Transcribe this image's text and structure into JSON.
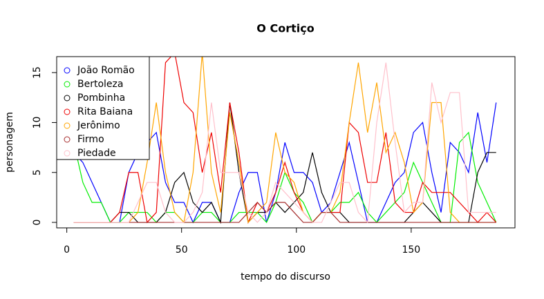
{
  "chart_data": {
    "type": "line",
    "title": "O Cortiço",
    "xlabel": "tempo do discurso",
    "ylabel": "personagem",
    "x": [
      3,
      7,
      11,
      15,
      19,
      23,
      27,
      31,
      35,
      39,
      43,
      47,
      51,
      55,
      59,
      63,
      67,
      71,
      75,
      79,
      83,
      87,
      91,
      95,
      99,
      103,
      107,
      111,
      115,
      119,
      123,
      127,
      131,
      135,
      139,
      143,
      147,
      151,
      155,
      159,
      163,
      167,
      171,
      175,
      179,
      183,
      187
    ],
    "series": [
      {
        "name": "João Romão",
        "color": "#0000ff",
        "values": [
          7,
          6,
          4,
          2,
          0,
          0,
          5,
          7,
          8,
          9,
          4,
          2,
          2,
          0,
          2,
          2,
          0,
          0,
          3,
          5,
          5,
          0,
          3,
          8,
          5,
          5,
          4,
          1,
          2,
          5,
          8,
          4,
          0,
          0,
          2,
          4,
          5,
          9,
          10,
          5,
          1,
          8,
          7,
          5,
          11,
          6,
          12
        ]
      },
      {
        "name": "Bertoleza",
        "color": "#00ee00",
        "values": [
          8,
          4,
          2,
          2,
          0,
          0,
          1,
          1,
          1,
          0,
          1,
          1,
          0,
          0,
          1,
          1,
          0,
          0,
          1,
          1,
          1,
          0,
          2,
          5,
          3,
          2,
          0,
          1,
          1,
          2,
          2,
          3,
          1,
          0,
          1,
          2,
          3,
          6,
          4,
          2,
          0,
          0,
          8,
          9,
          4,
          2,
          0
        ]
      },
      {
        "name": "Pombinha",
        "color": "#000000",
        "values": [
          0,
          0,
          0,
          0,
          0,
          1,
          1,
          0,
          0,
          0,
          1,
          4,
          5,
          2,
          1,
          2,
          0,
          12,
          5,
          0,
          1,
          1,
          2,
          1,
          2,
          3,
          7,
          3,
          1,
          1,
          0,
          0,
          0,
          0,
          0,
          0,
          0,
          1,
          2,
          1,
          0,
          0,
          0,
          0,
          5,
          7,
          7
        ]
      },
      {
        "name": "Rita Baiana",
        "color": "#ee0000",
        "values": [
          0,
          0,
          0,
          0,
          0,
          1,
          5,
          5,
          0,
          1,
          16,
          17,
          12,
          11,
          5,
          9,
          3,
          12,
          7,
          0,
          2,
          1,
          3,
          6,
          3,
          1,
          0,
          1,
          1,
          1,
          10,
          9,
          4,
          4,
          9,
          2,
          1,
          1,
          4,
          3,
          3,
          3,
          2,
          1,
          0,
          1,
          0
        ]
      },
      {
        "name": "Jerônimo",
        "color": "#ffa500",
        "values": [
          0,
          0,
          0,
          0,
          0,
          0,
          0,
          1,
          6,
          12,
          5,
          1,
          0,
          5,
          17,
          5,
          1,
          11,
          6,
          0,
          1,
          2,
          9,
          5,
          4,
          1,
          0,
          1,
          1,
          3,
          10,
          16,
          9,
          14,
          7,
          9,
          6,
          1,
          2,
          12,
          12,
          1,
          0,
          0,
          0,
          0,
          0
        ]
      },
      {
        "name": "Firmo",
        "color": "#a52a2a",
        "values": [
          0,
          0,
          0,
          0,
          0,
          0,
          0,
          0,
          0,
          0,
          0,
          0,
          0,
          0,
          0,
          0,
          0,
          0,
          0,
          1,
          2,
          1,
          2,
          2,
          1,
          0,
          0,
          1,
          1,
          0,
          0,
          0,
          0,
          0,
          0,
          0,
          0,
          0,
          0,
          0,
          0,
          0,
          0,
          0,
          0,
          0,
          0
        ]
      },
      {
        "name": "Piedade",
        "color": "#ffc0cb",
        "values": [
          0,
          0,
          0,
          0,
          0,
          0,
          0,
          2,
          4,
          4,
          1,
          0,
          0,
          1,
          3,
          12,
          5,
          5,
          5,
          1,
          0,
          1,
          4,
          3,
          2,
          1,
          0,
          0,
          2,
          4,
          4,
          1,
          0,
          10,
          16,
          8,
          1,
          2,
          2,
          14,
          10,
          13,
          13,
          1,
          1,
          1,
          1
        ]
      }
    ],
    "xlim": [
      -4.4,
      195.2
    ],
    "ylim": [
      -0.55,
      16.6
    ],
    "xticks": [
      0,
      50,
      100,
      150
    ],
    "yticks": [
      0,
      5,
      10,
      15
    ],
    "legend": "top-left"
  }
}
